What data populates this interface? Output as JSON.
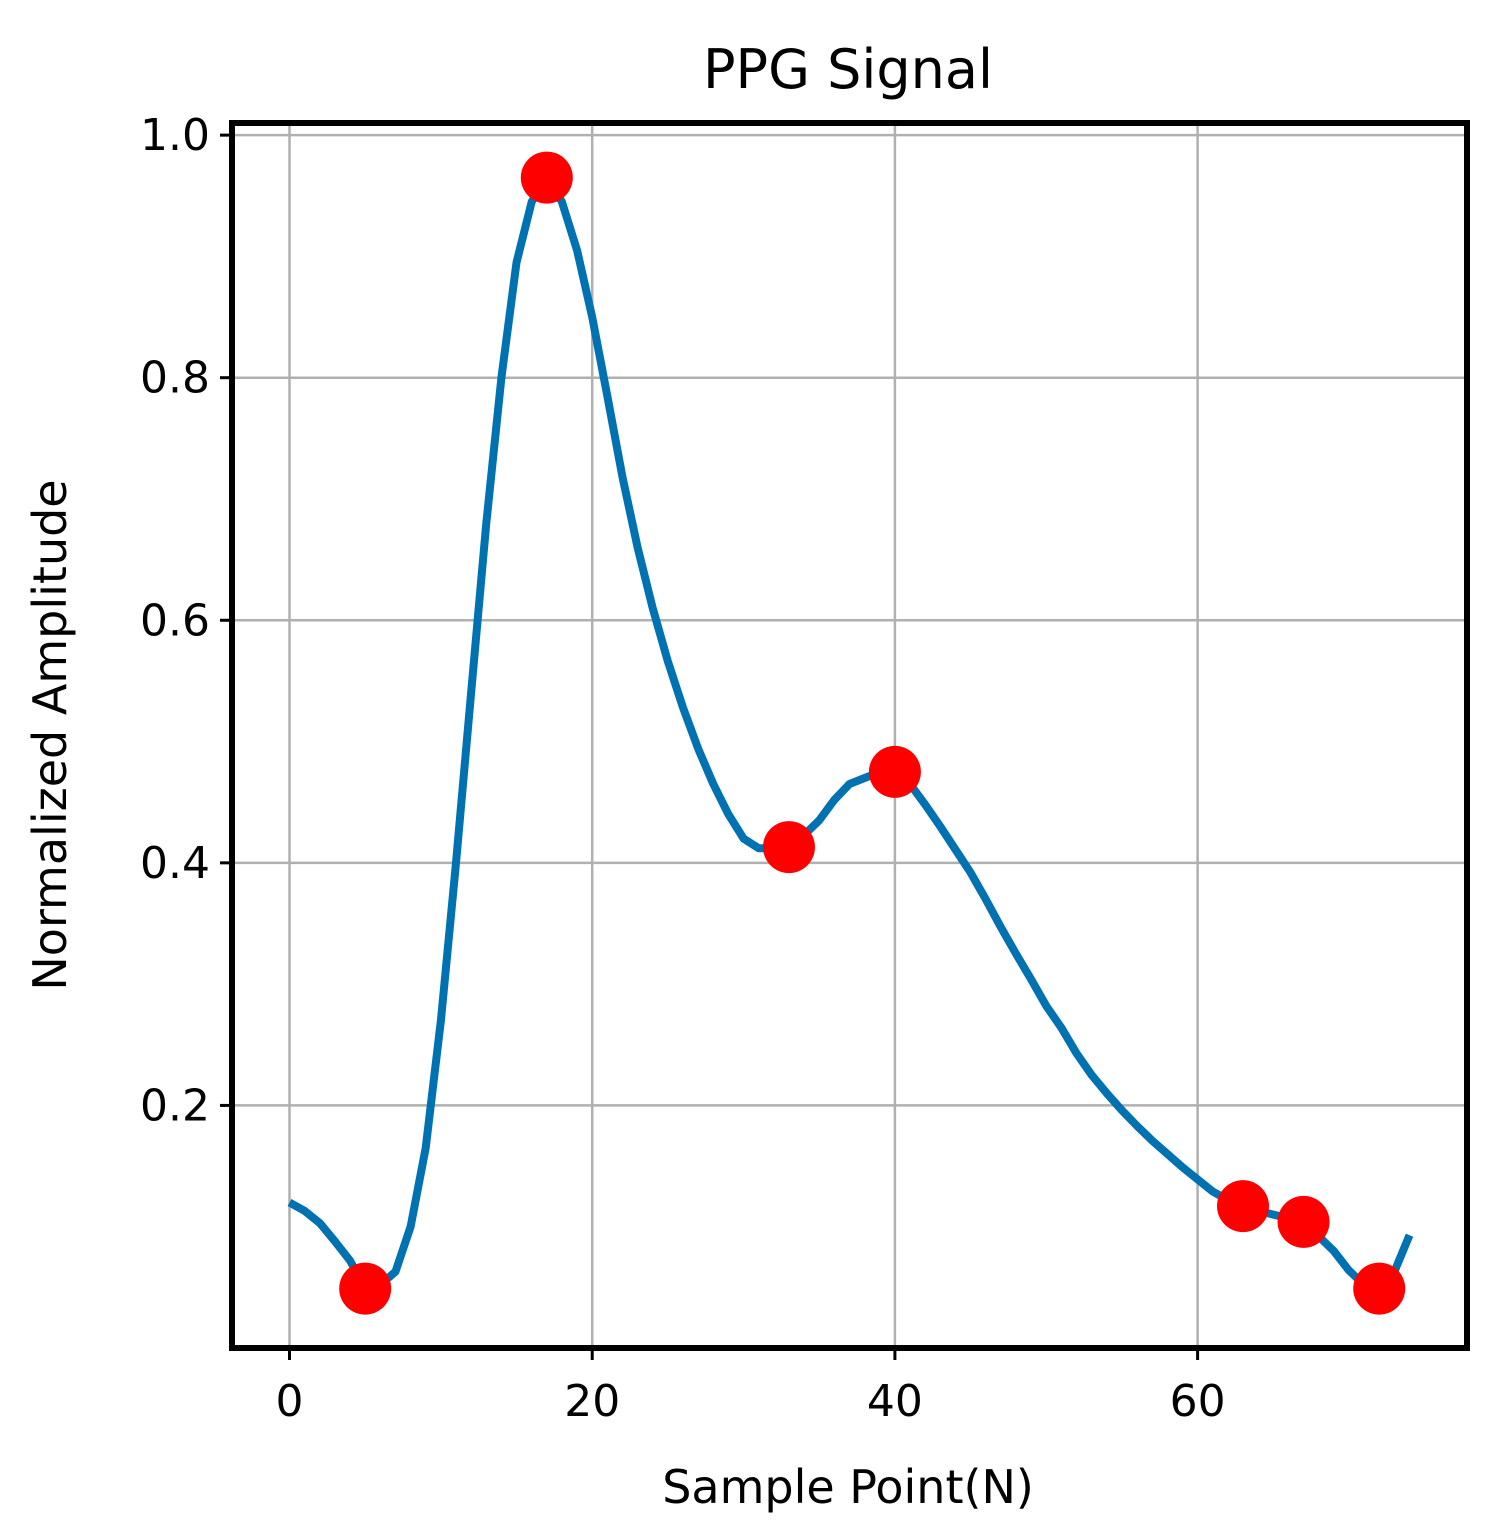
{
  "chart_data": {
    "type": "line",
    "title": "PPG Signal",
    "xlabel": "Sample Point(N)",
    "ylabel": "Normalized Amplitude",
    "xlim": [
      -3.8,
      77.8
    ],
    "ylim": [
      0.0,
      1.01
    ],
    "xticks": [
      0,
      20,
      40,
      60
    ],
    "xtick_labels": [
      "0",
      "20",
      "40",
      "60"
    ],
    "yticks": [
      0.2,
      0.4,
      0.6,
      0.8,
      1.0
    ],
    "ytick_labels": [
      "0.2",
      "0.4",
      "0.6",
      "0.8",
      "1.0"
    ],
    "grid": true,
    "series": [
      {
        "type": "line",
        "color": "#0072b2",
        "x": [
          0,
          1,
          2,
          3,
          4,
          5,
          6,
          7,
          8,
          9,
          10,
          11,
          12,
          13,
          14,
          15,
          16,
          17,
          18,
          19,
          20,
          21,
          22,
          23,
          24,
          25,
          26,
          27,
          28,
          29,
          30,
          31,
          32,
          33,
          34,
          35,
          36,
          37,
          38,
          39,
          40,
          41,
          42,
          43,
          44,
          45,
          46,
          47,
          48,
          49,
          50,
          51,
          52,
          53,
          54,
          55,
          56,
          57,
          58,
          59,
          60,
          61,
          62,
          63,
          64,
          65,
          66,
          67,
          68,
          69,
          70,
          71,
          72,
          73,
          74
        ],
        "y": [
          0.12,
          0.113,
          0.103,
          0.088,
          0.072,
          0.049,
          0.052,
          0.063,
          0.1,
          0.165,
          0.27,
          0.4,
          0.54,
          0.68,
          0.8,
          0.895,
          0.945,
          0.965,
          0.945,
          0.905,
          0.85,
          0.785,
          0.718,
          0.66,
          0.61,
          0.566,
          0.528,
          0.494,
          0.465,
          0.44,
          0.42,
          0.412,
          0.412,
          0.413,
          0.423,
          0.435,
          0.452,
          0.465,
          0.47,
          0.475,
          0.475,
          0.465,
          0.448,
          0.43,
          0.411,
          0.392,
          0.37,
          0.347,
          0.325,
          0.304,
          0.282,
          0.264,
          0.243,
          0.225,
          0.21,
          0.196,
          0.183,
          0.171,
          0.16,
          0.149,
          0.139,
          0.129,
          0.122,
          0.117,
          0.113,
          0.11,
          0.107,
          0.104,
          0.092,
          0.08,
          0.064,
          0.052,
          0.049,
          0.063,
          0.093
        ]
      },
      {
        "type": "scatter",
        "color": "#ff0000",
        "x": [
          5,
          17,
          33,
          40,
          63,
          67,
          72
        ],
        "y": [
          0.049,
          0.965,
          0.413,
          0.475,
          0.117,
          0.104,
          0.049
        ]
      }
    ]
  }
}
